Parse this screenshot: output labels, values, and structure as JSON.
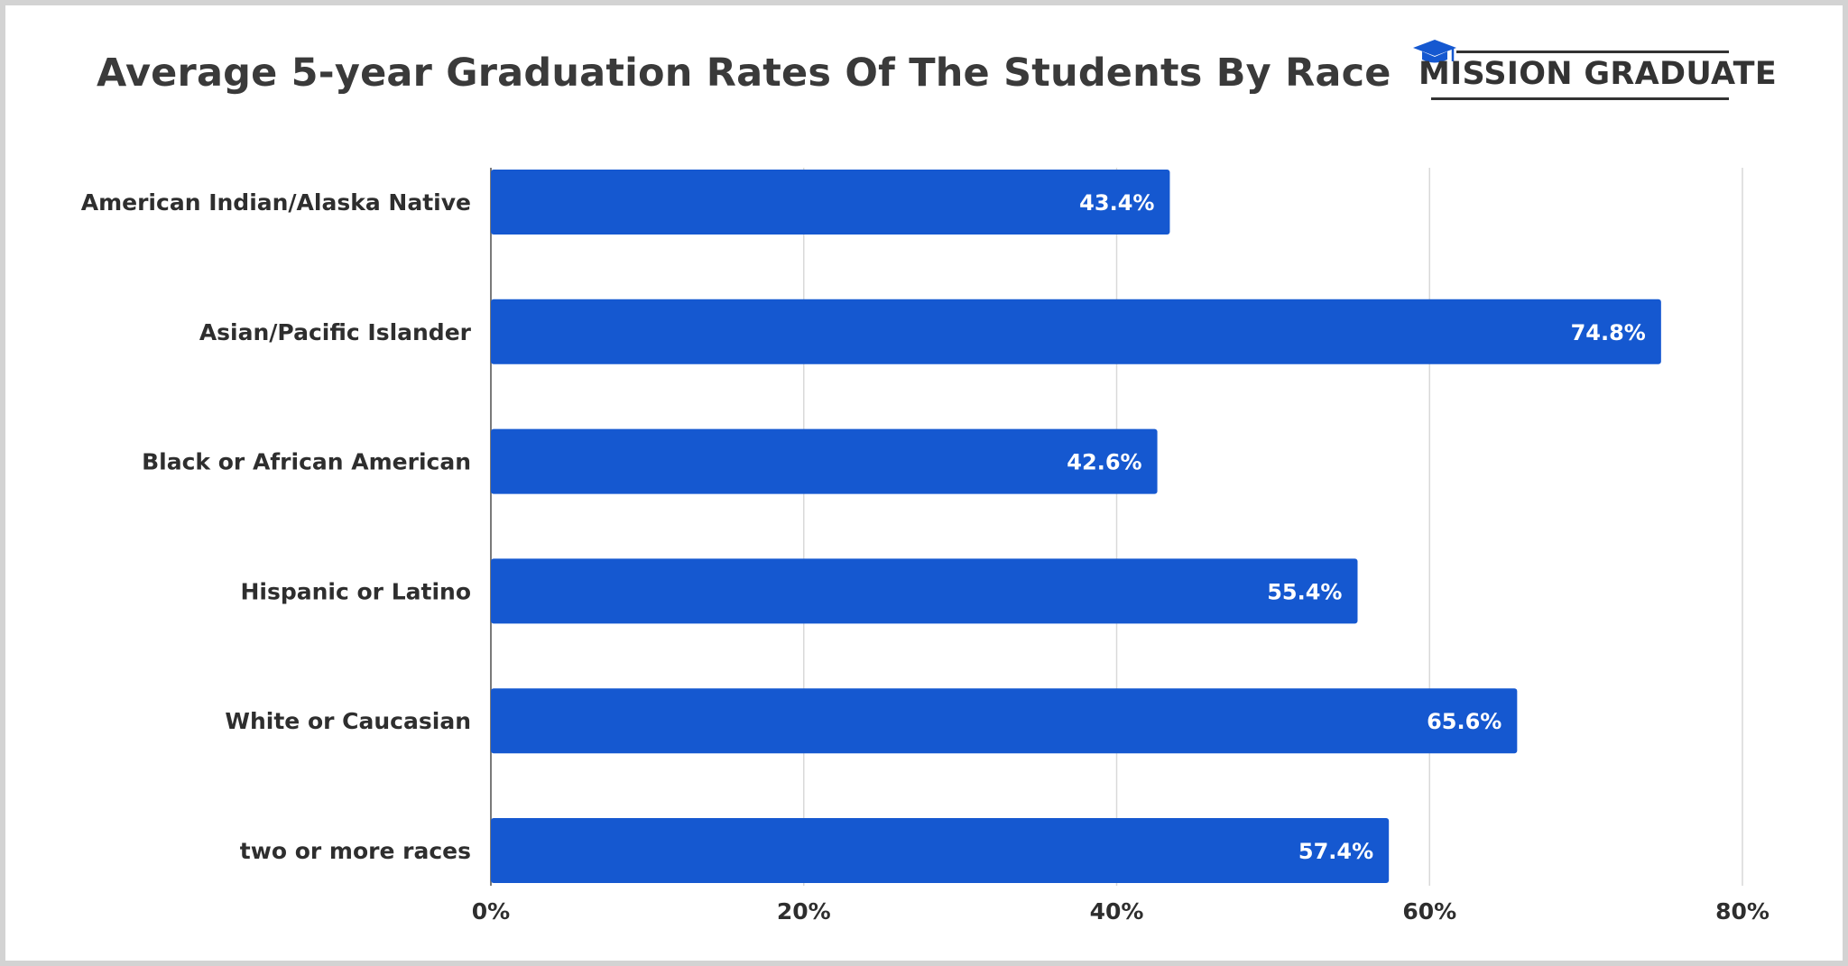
{
  "brand": {
    "name": "MISSION GRADUATE",
    "icon": "graduation-cap-icon",
    "color": "#1558d0"
  },
  "chart_data": {
    "type": "bar",
    "orientation": "horizontal",
    "title": "Average 5-year Graduation Rates Of The Students By Race",
    "categories": [
      "American Indian/Alaska Native",
      "Asian/Pacific Islander",
      "Black or African American",
      "Hispanic or Latino",
      "White or Caucasian",
      "two or more races"
    ],
    "values": [
      43.4,
      74.8,
      42.6,
      55.4,
      65.6,
      57.4
    ],
    "value_labels": [
      "43.4%",
      "74.8%",
      "42.6%",
      "55.4%",
      "65.6%",
      "57.4%"
    ],
    "xlim": [
      0,
      80
    ],
    "xticks": [
      0,
      20,
      40,
      60,
      80
    ],
    "xtick_labels": [
      "0%",
      "20%",
      "40%",
      "60%",
      "80%"
    ],
    "xlabel": "",
    "ylabel": "",
    "grid": true,
    "bar_color": "#1558d0",
    "grid_color": "#d9d9d9"
  }
}
